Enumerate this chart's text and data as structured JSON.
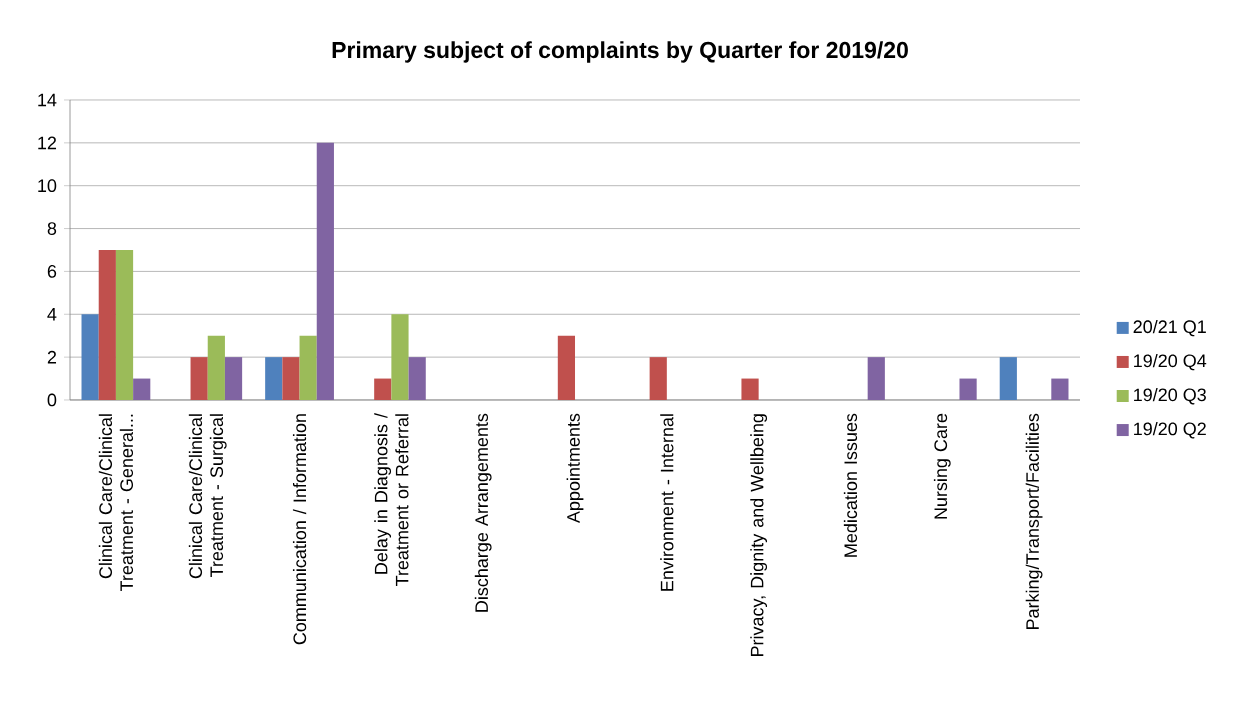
{
  "chart_data": {
    "type": "bar",
    "title": "Primary subject of complaints by Quarter for 2019/20",
    "categories": [
      "Clinical Care/Clinical Treatment - General...",
      "Clinical Care/Clinical Treatment - Surgical",
      "Communication / Information",
      "Delay in Diagnosis / Treatment or Referral",
      "Discharge Arrangements",
      "Appointments",
      "Environment - Internal",
      "Privacy, Dignity and Wellbeing",
      "Medication Issues",
      "Nursing Care",
      "Parking/Transport/Facilities"
    ],
    "series": [
      {
        "name": "20/21 Q1",
        "color": "#4f81bd",
        "values": [
          4,
          0,
          2,
          0,
          0,
          0,
          0,
          0,
          0,
          0,
          2
        ]
      },
      {
        "name": "19/20 Q4",
        "color": "#c0504d",
        "values": [
          7,
          2,
          2,
          1,
          0,
          3,
          2,
          1,
          0,
          0,
          0
        ]
      },
      {
        "name": "19/20 Q3",
        "color": "#9bbb59",
        "values": [
          7,
          3,
          3,
          4,
          0,
          0,
          0,
          0,
          0,
          0,
          0
        ]
      },
      {
        "name": "19/20 Q2",
        "color": "#8064a2",
        "values": [
          1,
          2,
          12,
          2,
          0,
          0,
          0,
          0,
          2,
          1,
          1
        ]
      }
    ],
    "ylim": [
      0,
      14
    ],
    "yticks": [
      0,
      2,
      4,
      6,
      8,
      10,
      12,
      14
    ],
    "grid": "y",
    "legend": "right"
  }
}
